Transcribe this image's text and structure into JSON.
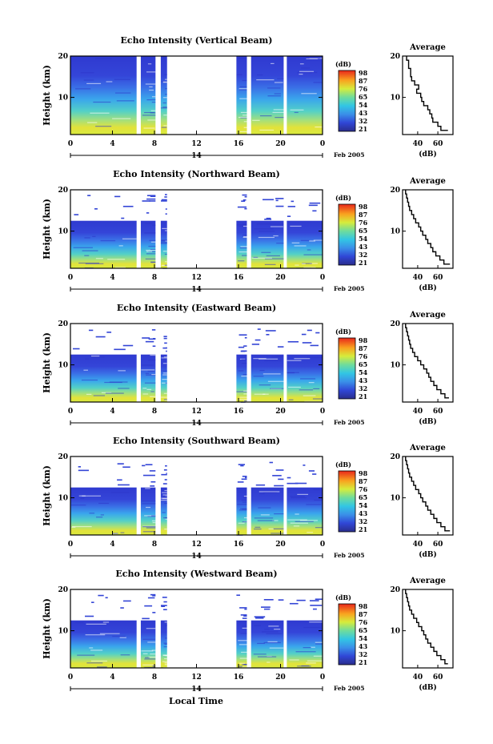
{
  "figure": {
    "local_time_label": "Local Time"
  },
  "chart_data": [
    {
      "type": "heatmap",
      "title": "Echo Intensity (Vertical Beam)",
      "ylabel": "Height (km)",
      "xlabel": "",
      "x_ticks": [
        "0",
        "4",
        "8",
        "12",
        "16",
        "20",
        "0"
      ],
      "xlim": [
        0,
        24
      ],
      "ylim": [
        1,
        20
      ],
      "y_ticks": [
        "20",
        "10"
      ],
      "date_day": "14",
      "date_month_year": "Feb 2005",
      "colorbar": {
        "unit": "(dB)",
        "ticks": [
          "98",
          "87",
          "76",
          "65",
          "54",
          "43",
          "32",
          "21"
        ]
      },
      "data_time_segments": [
        [
          0,
          6.3
        ],
        [
          6.7,
          8.1
        ],
        [
          8.6,
          9.2
        ],
        [
          15.8,
          16.8
        ],
        [
          17.2,
          20.3
        ],
        [
          20.6,
          24
        ]
      ],
      "average_profile": {
        "title": "Average",
        "xlabel": "(dB)",
        "x_ticks": [
          "40",
          "60"
        ],
        "y_ticks": [
          "20",
          "10"
        ],
        "xlim": [
          25,
          75
        ],
        "height_km": [
          20,
          19,
          18,
          17,
          16,
          15,
          14,
          13,
          12,
          11,
          10,
          9,
          8,
          7,
          6,
          5,
          4,
          3,
          2
        ],
        "mean_db": [
          29,
          31,
          31,
          33,
          33,
          34,
          37,
          41,
          39,
          43,
          44,
          46,
          50,
          52,
          54,
          55,
          60,
          63,
          70
        ]
      }
    },
    {
      "type": "heatmap",
      "title": "Echo Intensity (Northward Beam)",
      "ylabel": "Height (km)",
      "xlabel": "",
      "x_ticks": [
        "0",
        "4",
        "8",
        "12",
        "16",
        "20",
        "0"
      ],
      "xlim": [
        0,
        24
      ],
      "ylim": [
        1,
        20
      ],
      "y_ticks": [
        "20",
        "10"
      ],
      "date_day": "14",
      "date_month_year": "Feb 2005",
      "colorbar": {
        "unit": "(dB)",
        "ticks": [
          "98",
          "87",
          "76",
          "65",
          "54",
          "43",
          "32",
          "21"
        ]
      },
      "data_time_segments": [
        [
          0,
          6.3
        ],
        [
          6.7,
          8.1
        ],
        [
          8.6,
          9.2
        ],
        [
          15.8,
          16.8
        ],
        [
          17.2,
          20.3
        ],
        [
          20.6,
          24
        ]
      ],
      "average_profile": {
        "title": "Average",
        "xlabel": "(dB)",
        "x_ticks": [
          "40",
          "60"
        ],
        "y_ticks": [
          "20",
          "10"
        ],
        "xlim": [
          25,
          75
        ],
        "height_km": [
          20,
          19,
          18,
          17,
          16,
          15,
          14,
          13,
          12,
          11,
          10,
          9,
          8,
          7,
          6,
          5,
          4,
          3,
          2
        ],
        "mean_db": [
          28,
          29,
          30,
          31,
          32,
          34,
          36,
          38,
          41,
          43,
          45,
          48,
          50,
          53,
          55,
          58,
          62,
          66,
          72
        ]
      }
    },
    {
      "type": "heatmap",
      "title": "Echo Intensity (Eastward Beam)",
      "ylabel": "Height (km)",
      "xlabel": "",
      "x_ticks": [
        "0",
        "4",
        "8",
        "12",
        "16",
        "20",
        "0"
      ],
      "xlim": [
        0,
        24
      ],
      "ylim": [
        1,
        20
      ],
      "y_ticks": [
        "20",
        "10"
      ],
      "date_day": "14",
      "date_month_year": "Feb 2005",
      "colorbar": {
        "unit": "(dB)",
        "ticks": [
          "98",
          "87",
          "76",
          "65",
          "54",
          "43",
          "32",
          "21"
        ]
      },
      "data_time_segments": [
        [
          0,
          6.3
        ],
        [
          6.7,
          8.1
        ],
        [
          8.6,
          9.2
        ],
        [
          15.8,
          16.8
        ],
        [
          17.2,
          20.3
        ],
        [
          20.6,
          24
        ]
      ],
      "average_profile": {
        "title": "Average",
        "xlabel": "(dB)",
        "x_ticks": [
          "40",
          "60"
        ],
        "y_ticks": [
          "20",
          "10"
        ],
        "xlim": [
          25,
          75
        ],
        "height_km": [
          20,
          19,
          18,
          17,
          16,
          15,
          14,
          13,
          12,
          11,
          10,
          9,
          8,
          7,
          6,
          5,
          4,
          3,
          2
        ],
        "mean_db": [
          28,
          29,
          30,
          31,
          32,
          33,
          35,
          37,
          40,
          43,
          46,
          49,
          51,
          53,
          56,
          59,
          63,
          67,
          71
        ]
      }
    },
    {
      "type": "heatmap",
      "title": "Echo Intensity (Southward Beam)",
      "ylabel": "Height (km)",
      "xlabel": "",
      "x_ticks": [
        "0",
        "4",
        "8",
        "12",
        "16",
        "20",
        "0"
      ],
      "xlim": [
        0,
        24
      ],
      "ylim": [
        1,
        20
      ],
      "y_ticks": [
        "20",
        "10"
      ],
      "date_day": "14",
      "date_month_year": "Feb 2005",
      "colorbar": {
        "unit": "(dB)",
        "ticks": [
          "98",
          "87",
          "76",
          "65",
          "54",
          "43",
          "32",
          "21"
        ]
      },
      "data_time_segments": [
        [
          0,
          6.3
        ],
        [
          6.7,
          8.1
        ],
        [
          8.6,
          9.2
        ],
        [
          15.8,
          16.8
        ],
        [
          17.2,
          20.3
        ],
        [
          20.6,
          24
        ]
      ],
      "average_profile": {
        "title": "Average",
        "xlabel": "(dB)",
        "x_ticks": [
          "40",
          "60"
        ],
        "y_ticks": [
          "20",
          "10"
        ],
        "xlim": [
          25,
          75
        ],
        "height_km": [
          20,
          19,
          18,
          17,
          16,
          15,
          14,
          13,
          12,
          11,
          10,
          9,
          8,
          7,
          6,
          5,
          4,
          3,
          2
        ],
        "mean_db": [
          28,
          29,
          30,
          31,
          32,
          34,
          36,
          38,
          41,
          43,
          45,
          48,
          50,
          53,
          56,
          59,
          63,
          67,
          72
        ]
      }
    },
    {
      "type": "heatmap",
      "title": "Echo Intensity (Westward Beam)",
      "ylabel": "Height (km)",
      "xlabel": "Local Time",
      "x_ticks": [
        "0",
        "4",
        "8",
        "12",
        "16",
        "20",
        "0"
      ],
      "xlim": [
        0,
        24
      ],
      "ylim": [
        1,
        20
      ],
      "y_ticks": [
        "20",
        "10"
      ],
      "date_day": "14",
      "date_month_year": "Feb 2005",
      "colorbar": {
        "unit": "(dB)",
        "ticks": [
          "98",
          "87",
          "76",
          "65",
          "54",
          "43",
          "32",
          "21"
        ]
      },
      "data_time_segments": [
        [
          0,
          6.3
        ],
        [
          6.7,
          8.1
        ],
        [
          8.6,
          9.2
        ],
        [
          15.8,
          16.8
        ],
        [
          17.2,
          20.3
        ],
        [
          20.6,
          24
        ]
      ],
      "average_profile": {
        "title": "Average",
        "xlabel": "(dB)",
        "x_ticks": [
          "40",
          "60"
        ],
        "y_ticks": [
          "20",
          "10"
        ],
        "xlim": [
          25,
          75
        ],
        "height_km": [
          20,
          19,
          18,
          17,
          16,
          15,
          14,
          13,
          12,
          11,
          10,
          9,
          8,
          7,
          6,
          5,
          4,
          3,
          2
        ],
        "mean_db": [
          28,
          29,
          30,
          31,
          32,
          34,
          36,
          39,
          41,
          44,
          46,
          48,
          50,
          53,
          56,
          59,
          63,
          67,
          70
        ]
      }
    }
  ]
}
